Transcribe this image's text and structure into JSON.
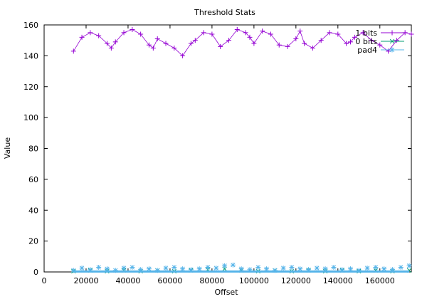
{
  "chart_data": {
    "type": "scatter",
    "title": "Threshold Stats",
    "xlabel": "Offset",
    "ylabel": "Value",
    "xlim": [
      0,
      175000
    ],
    "ylim": [
      0,
      160
    ],
    "xticks": [
      "0",
      "20000",
      "40000",
      "60000",
      "80000",
      "100000",
      "120000",
      "140000",
      "160000"
    ],
    "yticks": [
      "0",
      "20",
      "40",
      "60",
      "80",
      "100",
      "120",
      "140",
      "160"
    ],
    "grid": false,
    "legend_position": "top-right",
    "series": [
      {
        "name": "1 bits",
        "color": "#9400d3",
        "marker": "plus",
        "x": [
          14000,
          18000,
          22000,
          26000,
          30000,
          32000,
          34000,
          38000,
          42000,
          46000,
          50000,
          52000,
          54000,
          58000,
          62000,
          66000,
          70000,
          72000,
          76000,
          80000,
          84000,
          88000,
          92000,
          96000,
          98000,
          100000,
          104000,
          108000,
          112000,
          116000,
          120000,
          122000,
          124000,
          128000,
          132000,
          136000,
          140000,
          144000,
          146000,
          148000,
          152000,
          156000,
          160000,
          164000,
          168000,
          172000,
          175000
        ],
        "y": [
          143,
          152,
          155,
          153,
          148,
          145,
          149,
          155,
          157,
          154,
          147,
          145,
          151,
          148,
          145,
          140,
          148,
          150,
          155,
          154,
          146,
          150,
          157,
          155,
          152,
          148,
          156,
          154,
          147,
          146,
          151,
          156,
          148,
          145,
          150,
          155,
          154,
          148,
          149,
          152,
          155,
          150,
          147,
          143,
          150,
          155,
          154
        ]
      },
      {
        "name": "0 bits",
        "color": "#009e73",
        "marker": "cross",
        "x": [
          14000,
          22000,
          30000,
          38000,
          46000,
          54000,
          62000,
          70000,
          78000,
          86000,
          94000,
          102000,
          110000,
          118000,
          126000,
          134000,
          142000,
          150000,
          158000,
          166000,
          174000
        ],
        "y": [
          0.5,
          1,
          0.5,
          1,
          0.5,
          1,
          0.5,
          1,
          1.5,
          2,
          1,
          0.5,
          1,
          0.5,
          1,
          0.5,
          1,
          0.5,
          1,
          0.5,
          1
        ]
      },
      {
        "name": "pad4",
        "color": "#56b4e9",
        "marker": "star",
        "x": [
          14000,
          18000,
          22000,
          26000,
          30000,
          34000,
          38000,
          42000,
          46000,
          50000,
          54000,
          58000,
          62000,
          66000,
          70000,
          74000,
          78000,
          82000,
          86000,
          90000,
          94000,
          98000,
          102000,
          106000,
          110000,
          114000,
          118000,
          122000,
          126000,
          130000,
          134000,
          138000,
          142000,
          146000,
          150000,
          154000,
          158000,
          162000,
          166000,
          170000,
          174000
        ],
        "y": [
          1,
          2.5,
          1.5,
          3,
          2,
          1,
          2.5,
          3,
          1.5,
          2,
          1,
          2.5,
          3,
          2,
          1.5,
          2,
          3,
          2.5,
          4,
          4.5,
          2,
          1.5,
          3,
          2,
          1,
          2.5,
          3,
          2,
          1.5,
          2.5,
          2,
          3,
          1.5,
          2,
          1,
          2.5,
          3,
          2,
          1.5,
          3,
          4
        ]
      }
    ]
  }
}
